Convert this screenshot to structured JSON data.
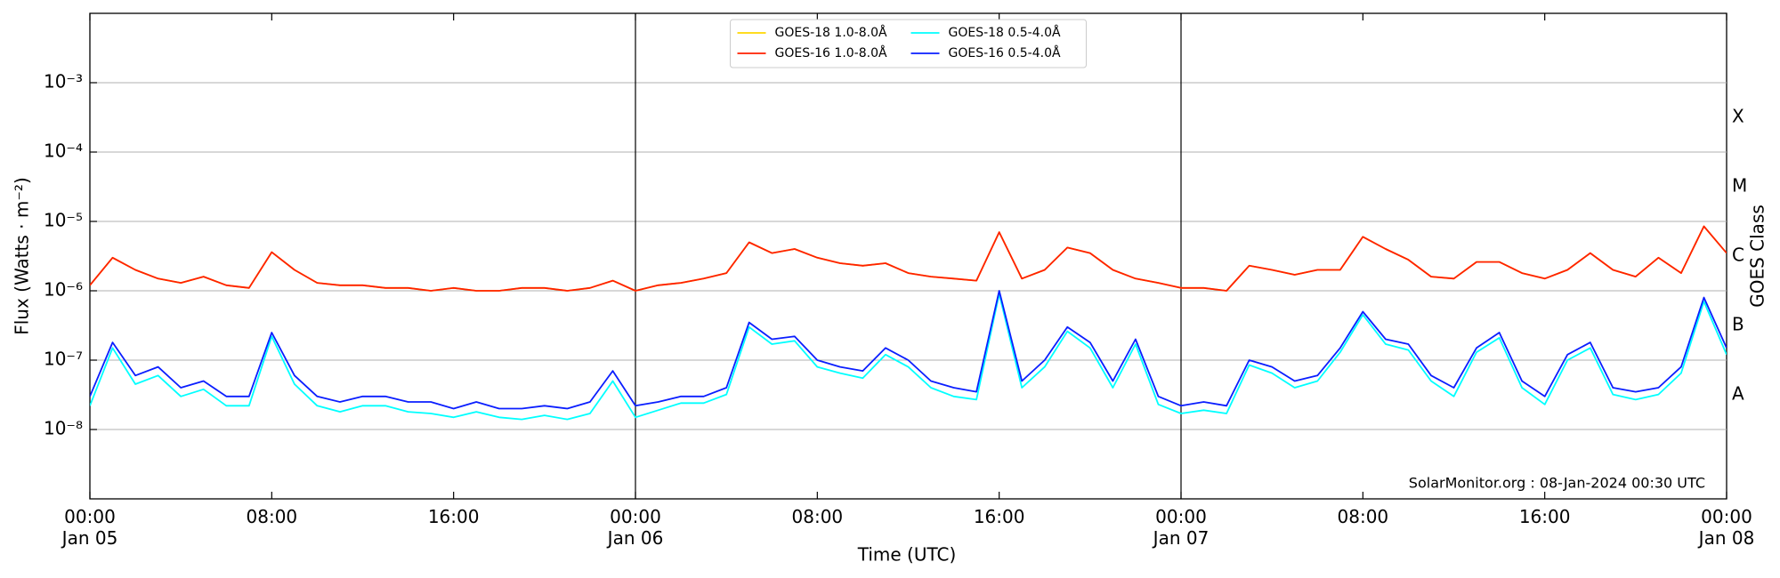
{
  "chart_data": {
    "type": "line",
    "xlabel": "Time (UTC)",
    "ylabel": "Flux (Watts · m⁻²)",
    "y2label": "GOES Class",
    "annotation": "SolarMonitor.org : 08-Jan-2024 00:30 UTC",
    "log_y": true,
    "grid": true,
    "legend": "upper center",
    "xlim": [
      0,
      72
    ],
    "xticks": [
      {
        "value": 0,
        "label": "00:00\nJan 05"
      },
      {
        "value": 8,
        "label": "08:00"
      },
      {
        "value": 16,
        "label": "16:00"
      },
      {
        "value": 24,
        "label": "00:00\nJan 06"
      },
      {
        "value": 32,
        "label": "08:00"
      },
      {
        "value": 40,
        "label": "16:00"
      },
      {
        "value": 48,
        "label": "00:00\nJan 07"
      },
      {
        "value": 56,
        "label": "08:00"
      },
      {
        "value": 64,
        "label": "16:00"
      },
      {
        "value": 72,
        "label": "00:00\nJan 08"
      }
    ],
    "vlines": [
      24,
      48
    ],
    "ylim": [
      1e-09,
      0.01
    ],
    "yticks": [
      {
        "value": 1e-08,
        "label": "10⁻⁸"
      },
      {
        "value": 1e-07,
        "label": "10⁻⁷"
      },
      {
        "value": 1e-06,
        "label": "10⁻⁶"
      },
      {
        "value": 1e-05,
        "label": "10⁻⁵"
      },
      {
        "value": 0.0001,
        "label": "10⁻⁴"
      },
      {
        "value": 0.001,
        "label": "10⁻³"
      }
    ],
    "y2lim": [
      1e-09,
      0.01
    ],
    "y2ticks": [
      {
        "value": 3.162e-08,
        "label": "A"
      },
      {
        "value": 3.162e-07,
        "label": "B"
      },
      {
        "value": 3.162e-06,
        "label": "C"
      },
      {
        "value": 3.162e-05,
        "label": "M"
      },
      {
        "value": 0.0003162,
        "label": "X"
      }
    ],
    "x": [
      0,
      1,
      2,
      3,
      4,
      5,
      6,
      7,
      8,
      9,
      10,
      11,
      12,
      13,
      14,
      15,
      16,
      17,
      18,
      19,
      20,
      21,
      22,
      23,
      24,
      25,
      26,
      27,
      28,
      29,
      30,
      31,
      32,
      33,
      34,
      35,
      36,
      37,
      38,
      39,
      40,
      41,
      42,
      43,
      44,
      45,
      46,
      47,
      48,
      49,
      50,
      51,
      52,
      53,
      54,
      55,
      56,
      57,
      58,
      59,
      60,
      61,
      62,
      63,
      64,
      65,
      66,
      67,
      68,
      69,
      70,
      71,
      72
    ],
    "series": [
      {
        "name": "GOES-18 1.0-8.0Å",
        "color": "#ffd700",
        "values": [
          1.2e-06,
          3e-06,
          2e-06,
          1.5e-06,
          1.3e-06,
          1.6e-06,
          1.2e-06,
          1.1e-06,
          3.6e-06,
          2e-06,
          1.3e-06,
          1.2e-06,
          1.2e-06,
          1.1e-06,
          1.1e-06,
          1e-06,
          1.1e-06,
          1e-06,
          1e-06,
          1.1e-06,
          1.1e-06,
          1e-06,
          1.1e-06,
          1.4e-06,
          1e-06,
          1.2e-06,
          1.3e-06,
          1.5e-06,
          1.8e-06,
          5e-06,
          3.5e-06,
          4e-06,
          3e-06,
          2.5e-06,
          2.3e-06,
          2.5e-06,
          1.8e-06,
          1.6e-06,
          1.5e-06,
          1.4e-06,
          7e-06,
          1.5e-06,
          2e-06,
          4.2e-06,
          3.5e-06,
          2e-06,
          1.5e-06,
          1.3e-06,
          1.1e-06,
          1.1e-06,
          1e-06,
          2.3e-06,
          2e-06,
          1.7e-06,
          2e-06,
          2e-06,
          6e-06,
          4e-06,
          2.8e-06,
          1.6e-06,
          1.5e-06,
          2.6e-06,
          2.6e-06,
          1.8e-06,
          1.5e-06,
          2e-06,
          3.5e-06,
          2e-06,
          1.6e-06,
          3e-06,
          1.8e-06,
          8.5e-06,
          3.5e-06
        ]
      },
      {
        "name": "GOES-16 1.0-8.0Å",
        "color": "#ff2000",
        "values": [
          1.2e-06,
          3e-06,
          2e-06,
          1.5e-06,
          1.3e-06,
          1.6e-06,
          1.2e-06,
          1.1e-06,
          3.6e-06,
          2e-06,
          1.3e-06,
          1.2e-06,
          1.2e-06,
          1.1e-06,
          1.1e-06,
          1e-06,
          1.1e-06,
          1e-06,
          1e-06,
          1.1e-06,
          1.1e-06,
          1e-06,
          1.1e-06,
          1.4e-06,
          1e-06,
          1.2e-06,
          1.3e-06,
          1.5e-06,
          1.8e-06,
          5e-06,
          3.5e-06,
          4e-06,
          3e-06,
          2.5e-06,
          2.3e-06,
          2.5e-06,
          1.8e-06,
          1.6e-06,
          1.5e-06,
          1.4e-06,
          7e-06,
          1.5e-06,
          2e-06,
          4.2e-06,
          3.5e-06,
          2e-06,
          1.5e-06,
          1.3e-06,
          1.1e-06,
          1.1e-06,
          1e-06,
          2.3e-06,
          2e-06,
          1.7e-06,
          2e-06,
          2e-06,
          6e-06,
          4e-06,
          2.8e-06,
          1.6e-06,
          1.5e-06,
          2.6e-06,
          2.6e-06,
          1.8e-06,
          1.5e-06,
          2e-06,
          3.5e-06,
          2e-06,
          1.6e-06,
          3e-06,
          1.8e-06,
          8.5e-06,
          3.5e-06
        ]
      },
      {
        "name": "GOES-18 0.5-4.0Å",
        "color": "#00ffff",
        "values": [
          2.2e-08,
          1.5e-07,
          4.5e-08,
          6e-08,
          3e-08,
          3.8e-08,
          2.2e-08,
          2.2e-08,
          2.2e-07,
          4.5e-08,
          2.2e-08,
          1.8e-08,
          2.2e-08,
          2.2e-08,
          1.8e-08,
          1.7e-08,
          1.5e-08,
          1.8e-08,
          1.5e-08,
          1.4e-08,
          1.6e-08,
          1.4e-08,
          1.7e-08,
          5e-08,
          1.5e-08,
          1.9e-08,
          2.4e-08,
          2.4e-08,
          3.2e-08,
          3e-07,
          1.7e-07,
          1.9e-07,
          8e-08,
          6.5e-08,
          5.5e-08,
          1.2e-07,
          8e-08,
          4e-08,
          3e-08,
          2.7e-08,
          9e-07,
          4e-08,
          8e-08,
          2.6e-07,
          1.5e-07,
          4e-08,
          1.7e-07,
          2.3e-08,
          1.7e-08,
          1.9e-08,
          1.7e-08,
          8.5e-08,
          6.5e-08,
          4e-08,
          5e-08,
          1.3e-07,
          4.5e-07,
          1.7e-07,
          1.4e-07,
          5e-08,
          3e-08,
          1.3e-07,
          2.1e-07,
          4e-08,
          2.3e-08,
          1e-07,
          1.5e-07,
          3.2e-08,
          2.7e-08,
          3.2e-08,
          6.5e-08,
          7e-07,
          1.2e-07
        ]
      },
      {
        "name": "GOES-16 0.5-4.0Å",
        "color": "#0a1eff",
        "values": [
          3e-08,
          1.8e-07,
          6e-08,
          8e-08,
          4e-08,
          5e-08,
          3e-08,
          3e-08,
          2.5e-07,
          6e-08,
          3e-08,
          2.5e-08,
          3e-08,
          3e-08,
          2.5e-08,
          2.5e-08,
          2e-08,
          2.5e-08,
          2e-08,
          2e-08,
          2.2e-08,
          2e-08,
          2.5e-08,
          7e-08,
          2.2e-08,
          2.5e-08,
          3e-08,
          3e-08,
          4e-08,
          3.5e-07,
          2e-07,
          2.2e-07,
          1e-07,
          8e-08,
          7e-08,
          1.5e-07,
          1e-07,
          5e-08,
          4e-08,
          3.5e-08,
          1e-06,
          5e-08,
          1e-07,
          3e-07,
          1.8e-07,
          5e-08,
          2e-07,
          3e-08,
          2.2e-08,
          2.5e-08,
          2.2e-08,
          1e-07,
          8e-08,
          5e-08,
          6e-08,
          1.5e-07,
          5e-07,
          2e-07,
          1.7e-07,
          6e-08,
          4e-08,
          1.5e-07,
          2.5e-07,
          5e-08,
          3e-08,
          1.2e-07,
          1.8e-07,
          4e-08,
          3.5e-08,
          4e-08,
          8e-08,
          8e-07,
          1.5e-07
        ]
      }
    ]
  }
}
